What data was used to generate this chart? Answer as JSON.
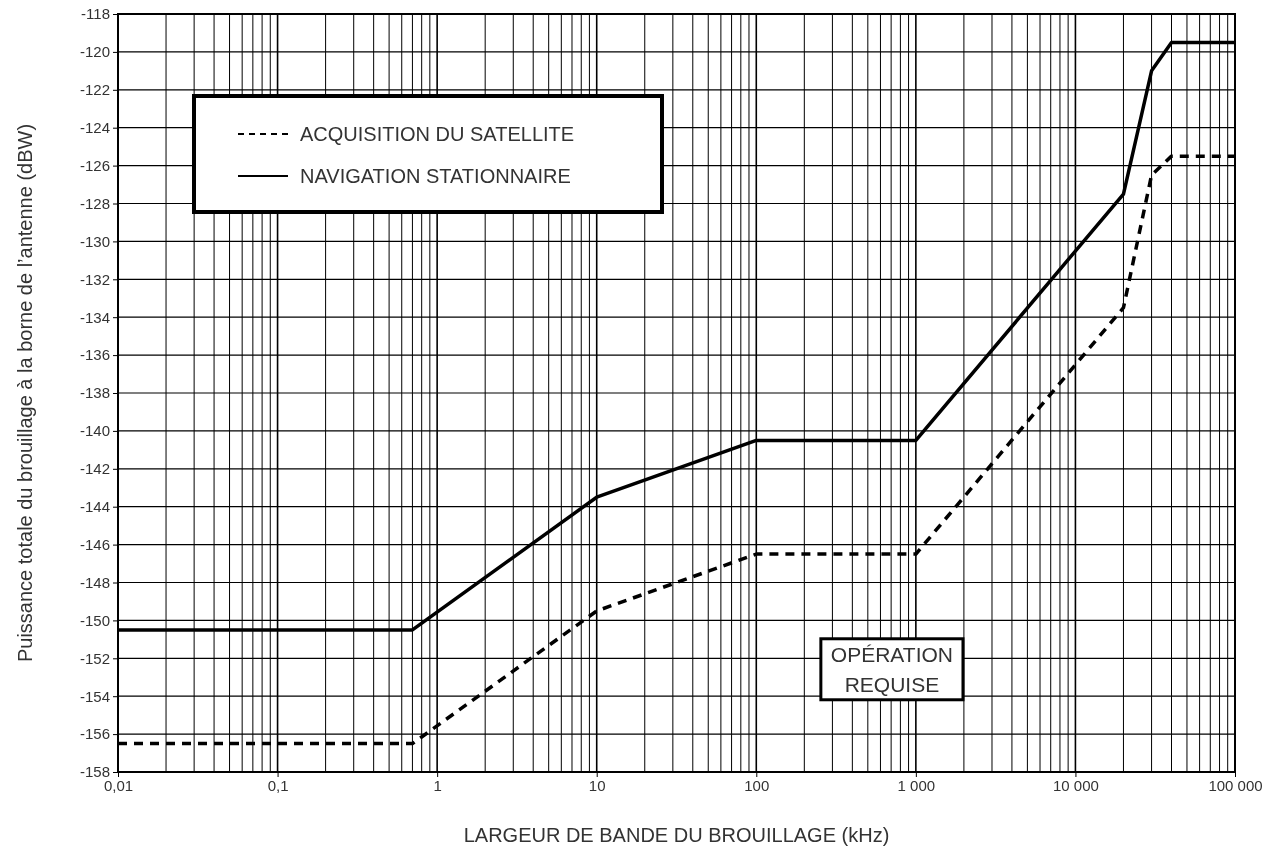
{
  "chart_data": {
    "type": "line",
    "xlabel": "LARGEUR DE BANDE DU BROUILLAGE (kHz)",
    "ylabel": "Puissance totale du brouillage à la borne de l’antenne (dBW)",
    "log": "x",
    "grid": true,
    "legend": "top left",
    "marker": "none",
    "xlim": [
      0.01,
      100000
    ],
    "xticks": [
      {
        "value": 0.01,
        "label": "0,01"
      },
      {
        "value": 0.1,
        "label": "0,1"
      },
      1,
      10,
      100,
      {
        "value": 1000,
        "label": "1 000"
      },
      {
        "value": 10000,
        "label": "10 000"
      },
      {
        "value": 100000,
        "label": "100 000"
      }
    ],
    "ylim": [
      -158,
      -118
    ],
    "yticks": [
      -158,
      -156,
      -154,
      -152,
      -150,
      -148,
      -146,
      -144,
      -142,
      -140,
      -138,
      -136,
      -134,
      -132,
      -130,
      -128,
      -126,
      -124,
      -122,
      -120,
      -118
    ],
    "annotations": [
      "OPÉRATION REQUISE"
    ],
    "series": [
      {
        "name": "ACQUISITION DU SATELLITE",
        "color": "#000000",
        "line_style": "dashed",
        "x": [
          0.01,
          0.7,
          10,
          100,
          1000,
          20000,
          30000,
          40000,
          100000
        ],
        "values": [
          -156.5,
          -156.5,
          -149.5,
          -146.5,
          -146.5,
          -133.5,
          -126.5,
          -125.5,
          -125.5
        ]
      },
      {
        "name": "NAVIGATION STATIONNAIRE",
        "color": "#000000",
        "line_style": "solid",
        "x": [
          0.01,
          0.7,
          10,
          100,
          1000,
          20000,
          30000,
          40000,
          100000
        ],
        "values": [
          -150.5,
          -150.5,
          -143.5,
          -140.5,
          -140.5,
          -127.5,
          -121,
          -119.5,
          -119.5
        ]
      }
    ]
  }
}
